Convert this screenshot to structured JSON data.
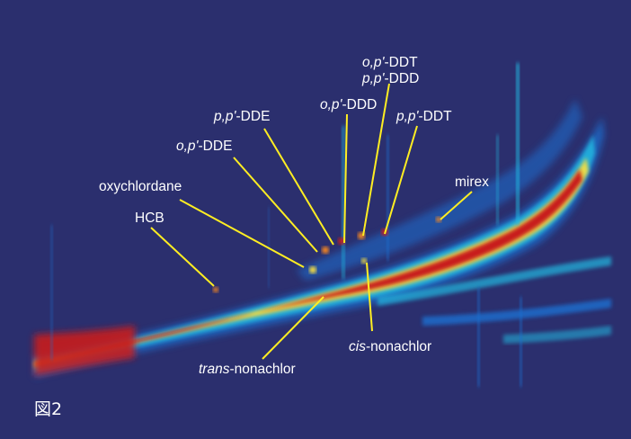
{
  "figure_label": "図2",
  "colors": {
    "background": "#2b2f6e",
    "annotation": "#ffee22",
    "label_text": "#ffffff",
    "colormap": [
      "#20307a",
      "#1f6fd0",
      "#21b8e0",
      "#6fe0a0",
      "#ffe23a",
      "#ff8a1e",
      "#c81e1e"
    ]
  },
  "chart_data": {
    "type": "heatmap",
    "title": "",
    "xlabel": "",
    "ylabel": "",
    "axes_visible": false,
    "colormap": "jet",
    "annotations": [
      {
        "label": "HCB",
        "italic_prefix": "",
        "suffix": "HCB"
      },
      {
        "label": "oxychlordane",
        "italic_prefix": "",
        "suffix": "oxychlordane"
      },
      {
        "label": "o,p'-DDE",
        "italic_prefix": "o,p'",
        "suffix": "-DDE"
      },
      {
        "label": "p,p'-DDE",
        "italic_prefix": "p,p'",
        "suffix": "-DDE"
      },
      {
        "label": "o,p'-DDD",
        "italic_prefix": "o,p'",
        "suffix": "-DDD"
      },
      {
        "label": "o,p'-DDT",
        "italic_prefix": "o,p'",
        "suffix": "-DDT"
      },
      {
        "label": "p,p'-DDD",
        "italic_prefix": "p,p'",
        "suffix": "-DDD"
      },
      {
        "label": "p,p'-DDT",
        "italic_prefix": "p,p'",
        "suffix": "-DDT"
      },
      {
        "label": "mirex",
        "italic_prefix": "",
        "suffix": "mirex"
      },
      {
        "label": "trans-nonachlor",
        "italic_prefix": "trans",
        "suffix": "-nonachlor"
      },
      {
        "label": "cis-nonachlor",
        "italic_prefix": "cis",
        "suffix": "-nonachlor"
      }
    ]
  }
}
